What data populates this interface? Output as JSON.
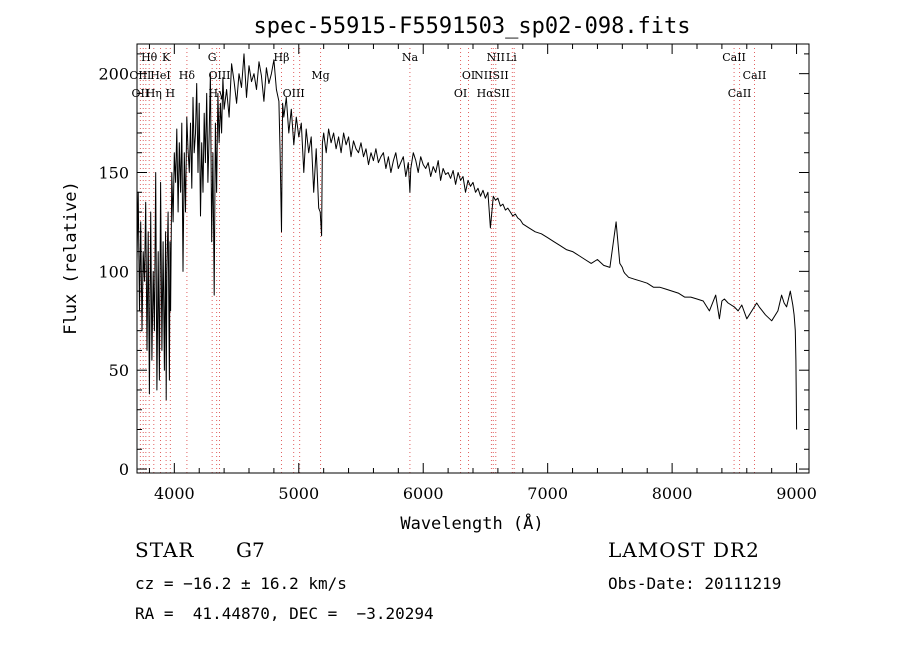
{
  "chart_data": {
    "type": "line",
    "title": "spec-55915-F5591503_sp02-098.fits",
    "xlabel": "Wavelength (Å)",
    "ylabel": "Flux (relative)",
    "xlim": [
      3700,
      9100
    ],
    "ylim": [
      -2,
      215
    ],
    "xticks": [
      4000,
      5000,
      6000,
      7000,
      8000,
      9000
    ],
    "yticks": [
      0,
      50,
      100,
      150,
      200
    ],
    "grid": false,
    "series": [
      {
        "color": "#000000",
        "x": [
          3700,
          3710,
          3720,
          3730,
          3740,
          3750,
          3760,
          3770,
          3780,
          3790,
          3800,
          3810,
          3820,
          3830,
          3840,
          3850,
          3860,
          3870,
          3880,
          3890,
          3900,
          3910,
          3920,
          3930,
          3935,
          3940,
          3950,
          3960,
          3965,
          3970,
          3980,
          3990,
          4000,
          4010,
          4020,
          4030,
          4040,
          4050,
          4060,
          4070,
          4080,
          4090,
          4100,
          4110,
          4120,
          4130,
          4140,
          4150,
          4160,
          4170,
          4180,
          4190,
          4200,
          4210,
          4220,
          4230,
          4240,
          4250,
          4260,
          4270,
          4280,
          4290,
          4300,
          4310,
          4320,
          4330,
          4340,
          4350,
          4360,
          4370,
          4380,
          4390,
          4400,
          4420,
          4440,
          4460,
          4480,
          4500,
          4520,
          4540,
          4560,
          4580,
          4600,
          4620,
          4640,
          4660,
          4680,
          4700,
          4720,
          4740,
          4760,
          4780,
          4800,
          4820,
          4840,
          4850,
          4861,
          4870,
          4880,
          4900,
          4920,
          4940,
          4960,
          4980,
          5000,
          5020,
          5040,
          5060,
          5080,
          5100,
          5120,
          5140,
          5160,
          5172,
          5183,
          5190,
          5200,
          5220,
          5240,
          5260,
          5280,
          5300,
          5320,
          5340,
          5360,
          5380,
          5400,
          5420,
          5440,
          5460,
          5480,
          5500,
          5520,
          5540,
          5560,
          5580,
          5600,
          5620,
          5640,
          5660,
          5680,
          5700,
          5720,
          5740,
          5760,
          5780,
          5800,
          5820,
          5840,
          5860,
          5880,
          5893,
          5900,
          5920,
          5940,
          5960,
          5980,
          6000,
          6020,
          6040,
          6060,
          6080,
          6100,
          6120,
          6140,
          6160,
          6180,
          6200,
          6220,
          6240,
          6260,
          6280,
          6300,
          6320,
          6340,
          6360,
          6380,
          6400,
          6420,
          6440,
          6460,
          6480,
          6500,
          6520,
          6540,
          6563,
          6580,
          6600,
          6620,
          6640,
          6660,
          6680,
          6700,
          6720,
          6740,
          6760,
          6780,
          6800,
          6850,
          6900,
          6950,
          7000,
          7050,
          7100,
          7150,
          7200,
          7250,
          7300,
          7350,
          7400,
          7450,
          7500,
          7550,
          7580,
          7600,
          7610,
          7620,
          7650,
          7700,
          7750,
          7800,
          7850,
          7900,
          7950,
          8000,
          8050,
          8100,
          8150,
          8200,
          8250,
          8300,
          8350,
          8380,
          8400,
          8420,
          8450,
          8500,
          8530,
          8560,
          8600,
          8640,
          8680,
          8700,
          8750,
          8800,
          8850,
          8880,
          8900,
          8920,
          8950,
          8970,
          8980,
          8990,
          8995,
          9000
        ],
        "y": [
          105,
          140,
          80,
          125,
          70,
          110,
          95,
          135,
          60,
          120,
          38,
          130,
          55,
          100,
          70,
          150,
          40,
          110,
          45,
          145,
          60,
          115,
          50,
          120,
          35,
          100,
          130,
          45,
          115,
          80,
          150,
          125,
          160,
          145,
          172,
          130,
          165,
          140,
          175,
          100,
          160,
          130,
          178,
          162,
          150,
          175,
          142,
          188,
          160,
          170,
          195,
          150,
          185,
          128,
          165,
          140,
          180,
          155,
          190,
          145,
          170,
          200,
          115,
          160,
          88,
          175,
          140,
          190,
          165,
          185,
          170,
          198,
          182,
          192,
          178,
          205,
          196,
          185,
          200,
          193,
          210,
          188,
          204,
          196,
          200,
          192,
          206,
          199,
          186,
          203,
          195,
          200,
          207,
          192,
          186,
          160,
          120,
          185,
          178,
          188,
          170,
          182,
          164,
          178,
          168,
          175,
          150,
          172,
          160,
          168,
          140,
          162,
          132,
          130,
          118,
          165,
          170,
          160,
          172,
          165,
          170,
          162,
          168,
          160,
          170,
          164,
          168,
          158,
          166,
          162,
          160,
          165,
          158,
          162,
          154,
          160,
          156,
          162,
          155,
          158,
          160,
          152,
          158,
          150,
          156,
          160,
          152,
          155,
          158,
          148,
          155,
          140,
          152,
          160,
          156,
          150,
          158,
          154,
          152,
          155,
          148,
          153,
          150,
          156,
          146,
          152,
          149,
          150,
          147,
          151,
          144,
          150,
          146,
          148,
          140,
          146,
          143,
          145,
          140,
          142,
          138,
          141,
          137,
          140,
          122,
          138,
          136,
          137,
          133,
          134,
          131,
          132,
          130,
          128,
          129,
          127,
          126,
          124,
          122,
          120,
          119,
          117,
          115,
          113,
          111,
          110,
          108,
          106,
          104,
          106,
          103,
          102,
          125,
          104,
          102,
          100,
          99,
          97,
          96,
          95,
          94,
          92,
          92,
          91,
          90,
          89,
          87,
          87,
          86,
          85,
          80,
          88,
          76,
          85,
          86,
          84,
          82,
          80,
          83,
          76,
          80,
          84,
          82,
          78,
          75,
          80,
          88,
          84,
          82,
          90,
          83,
          78,
          70,
          55,
          20
        ]
      }
    ],
    "line_labels": [
      {
        "text": "Hθ",
        "x": 3798,
        "row": 0
      },
      {
        "text": "K",
        "x": 3934,
        "row": 0
      },
      {
        "text": "G",
        "x": 4304,
        "row": 0
      },
      {
        "text": "Hβ",
        "x": 4861,
        "row": 0
      },
      {
        "text": "Na",
        "x": 5893,
        "row": 0
      },
      {
        "text": "NII",
        "x": 6583,
        "row": 0
      },
      {
        "text": "Li",
        "x": 6708,
        "row": 0
      },
      {
        "text": "CaII",
        "x": 8498,
        "row": 0
      },
      {
        "text": "OIII",
        "x": 3727,
        "row": 1
      },
      {
        "text": "HeI",
        "x": 3889,
        "row": 1
      },
      {
        "text": "Hδ",
        "x": 4101,
        "row": 1
      },
      {
        "text": "OIII",
        "x": 4363,
        "row": 1
      },
      {
        "text": "Mg",
        "x": 5175,
        "row": 1
      },
      {
        "text": "OI",
        "x": 6364,
        "row": 1
      },
      {
        "text": "NIISII",
        "x": 6548,
        "row": 1
      },
      {
        "text": "CaII",
        "x": 8662,
        "row": 1
      },
      {
        "text": "OII",
        "x": 3727,
        "row": 2
      },
      {
        "text": "Hη",
        "x": 3835,
        "row": 2
      },
      {
        "text": "H",
        "x": 3968,
        "row": 2
      },
      {
        "text": "Hγ",
        "x": 4340,
        "row": 2
      },
      {
        "text": "OIII",
        "x": 4959,
        "row": 2
      },
      {
        "text": "OI",
        "x": 6300,
        "row": 2
      },
      {
        "text": "HαSII",
        "x": 6563,
        "row": 2
      },
      {
        "text": "CaII",
        "x": 8542,
        "row": 2
      }
    ],
    "line_markers": [
      3727,
      3750,
      3771,
      3798,
      3835,
      3889,
      3934,
      3968,
      4101,
      4304,
      4340,
      4363,
      4861,
      4959,
      5007,
      5175,
      5893,
      6300,
      6364,
      6548,
      6563,
      6583,
      6716,
      6731,
      8498,
      8542,
      8662
    ]
  },
  "info": {
    "object_class": "STAR",
    "subclass": "G7",
    "survey": "LAMOST DR2",
    "redshift": "cz = −16.2 ± 16.2 km/s",
    "obs_date": "Obs-Date: 20111219",
    "coords": "RA =  41.44870, DEC =  −3.20294"
  }
}
